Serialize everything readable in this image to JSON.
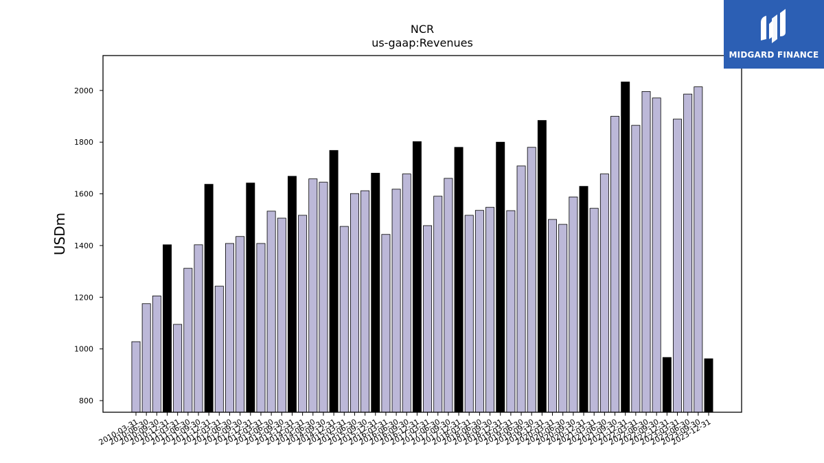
{
  "logo": {
    "text": "MIDGARD FINANCE",
    "background": "#2c5fb4"
  },
  "chart_data": {
    "type": "bar",
    "title": "NCR",
    "subtitle": "us-gaap:Revenues",
    "xlabel": "",
    "ylabel": "USDm",
    "ylim": [
      755,
      2135
    ],
    "yticks": [
      800,
      1000,
      1200,
      1400,
      1600,
      1800,
      2000
    ],
    "grid": false,
    "colors": {
      "quarter": "#bcb8d8",
      "annual": "#000000",
      "edge": "#000000"
    },
    "categories": [
      "2010-03-31",
      "2010-06-30",
      "2010-09-30",
      "2010-12-31",
      "2011-03-31",
      "2011-06-30",
      "2011-09-30",
      "2011-12-31",
      "2012-03-31",
      "2012-06-30",
      "2012-09-30",
      "2012-12-31",
      "2013-03-31",
      "2013-06-30",
      "2013-09-30",
      "2013-12-31",
      "2014-03-31",
      "2014-06-30",
      "2014-09-30",
      "2014-12-31",
      "2015-03-31",
      "2015-06-30",
      "2015-09-30",
      "2015-12-31",
      "2016-03-31",
      "2016-06-30",
      "2016-09-30",
      "2016-12-31",
      "2017-03-31",
      "2017-06-30",
      "2017-09-30",
      "2017-12-31",
      "2018-03-31",
      "2018-06-30",
      "2018-09-30",
      "2018-12-31",
      "2019-03-31",
      "2019-06-30",
      "2019-09-30",
      "2019-12-31",
      "2020-03-31",
      "2020-06-30",
      "2020-09-30",
      "2020-12-31",
      "2021-03-31",
      "2021-06-30",
      "2021-09-30",
      "2021-12-31",
      "2022-03-31",
      "2022-06-30",
      "2022-09-30",
      "2022-12-31",
      "2023-03-31",
      "2023-06-30",
      "2023-09-30",
      "2023-12-31"
    ],
    "values": [
      1028,
      1175,
      1205,
      1403,
      1095,
      1312,
      1403,
      1637,
      1243,
      1408,
      1435,
      1642,
      1408,
      1533,
      1506,
      1668,
      1517,
      1658,
      1645,
      1768,
      1474,
      1601,
      1612,
      1680,
      1443,
      1618,
      1677,
      1802,
      1477,
      1591,
      1660,
      1780,
      1517,
      1536,
      1548,
      1800,
      1535,
      1708,
      1780,
      1884,
      1501,
      1482,
      1588,
      1629,
      1544,
      1677,
      1900,
      2033,
      1865,
      1996,
      1971,
      967,
      1889,
      1986,
      2014,
      962
    ],
    "highlight": [
      false,
      false,
      false,
      true,
      false,
      false,
      false,
      true,
      false,
      false,
      false,
      true,
      false,
      false,
      false,
      true,
      false,
      false,
      false,
      true,
      false,
      false,
      false,
      true,
      false,
      false,
      false,
      true,
      false,
      false,
      false,
      true,
      false,
      false,
      false,
      true,
      false,
      false,
      false,
      true,
      false,
      false,
      false,
      true,
      false,
      false,
      false,
      true,
      false,
      false,
      false,
      true,
      false,
      false,
      false,
      true
    ]
  }
}
